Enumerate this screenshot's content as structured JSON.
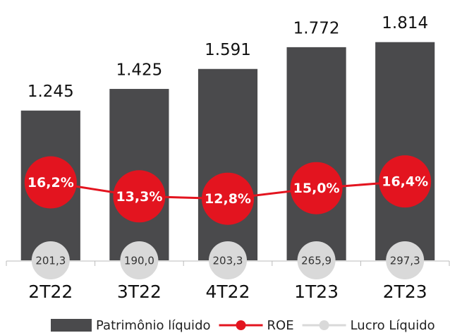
{
  "chart_data": {
    "type": "bar",
    "categories": [
      "2T22",
      "3T22",
      "4T22",
      "1T23",
      "2T23"
    ],
    "ylim": [
      0,
      2000
    ],
    "y2lim": [
      0,
      50
    ],
    "series": [
      {
        "name": "Patrimônio líquido",
        "type": "bar",
        "color": "#4a4a4c",
        "values": [
          1245,
          1425,
          1591,
          1772,
          1814
        ],
        "value_labels": [
          "1.245",
          "1.425",
          "1.591",
          "1.772",
          "1.814"
        ]
      },
      {
        "name": "ROE",
        "type": "line",
        "axis": "y2",
        "color": "#e3141f",
        "values": [
          16.2,
          13.3,
          12.8,
          15.0,
          16.4
        ],
        "value_labels": [
          "16,2%",
          "13,3%",
          "12,8%",
          "15,0%",
          "16,4%"
        ]
      },
      {
        "name": "Lucro Líquido",
        "type": "scatter",
        "color": "#d9d9d9",
        "values": [
          201.3,
          190.0,
          203.3,
          265.9,
          297.3
        ],
        "value_labels": [
          "201,3",
          "190,0",
          "203,3",
          "265,9",
          "297,3"
        ]
      }
    ]
  }
}
